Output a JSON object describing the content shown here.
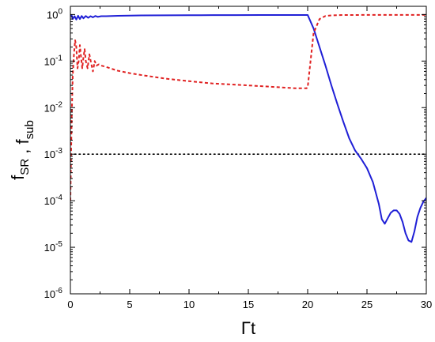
{
  "chart_data": {
    "type": "line",
    "title": "",
    "xlabel": "Γt",
    "ylabel_parts": [
      {
        "base": "f",
        "sub": "SR"
      },
      {
        "sep": " , "
      },
      {
        "base": "f",
        "sub": "sub"
      }
    ],
    "xlim": [
      0,
      30
    ],
    "ylim": [
      1e-06,
      1.5
    ],
    "yscale": "log",
    "grid": false,
    "legend": "none",
    "x_ticks": [
      0,
      5,
      10,
      15,
      20,
      25,
      30
    ],
    "x_tick_labels": [
      "0",
      "5",
      "10",
      "15",
      "20",
      "25",
      "30"
    ],
    "y_ticks": [
      {
        "value": 1,
        "base": "10",
        "exp": "0"
      },
      {
        "value": 0.1,
        "base": "10",
        "exp": "-1"
      },
      {
        "value": 0.01,
        "base": "10",
        "exp": "-2"
      },
      {
        "value": 0.001,
        "base": "10",
        "exp": "-3"
      },
      {
        "value": 0.0001,
        "base": "10",
        "exp": "-4"
      },
      {
        "value": 1e-05,
        "base": "10",
        "exp": "-5"
      },
      {
        "value": 1e-06,
        "base": "10",
        "exp": "-6"
      }
    ],
    "series": [
      {
        "color": "#1f1fd6",
        "style": "solid",
        "x": [
          0,
          0.1,
          0.2,
          0.35,
          0.5,
          0.65,
          0.8,
          0.95,
          1.1,
          1.3,
          1.5,
          1.7,
          1.9,
          2.1,
          2.3,
          2.6,
          3.0,
          4,
          5,
          6,
          8,
          10,
          12,
          14,
          16,
          18,
          19,
          20,
          20.5,
          21,
          21.5,
          22,
          22.5,
          23,
          23.5,
          24,
          24.5,
          25,
          25.5,
          26,
          26.25,
          26.5,
          26.75,
          27,
          27.25,
          27.5,
          27.75,
          28,
          28.25,
          28.5,
          28.75,
          29,
          29.25,
          29.5,
          29.75,
          30
        ],
        "y": [
          0.98,
          0.97,
          0.8,
          0.92,
          0.78,
          0.94,
          0.8,
          0.93,
          0.83,
          0.93,
          0.85,
          0.92,
          0.87,
          0.93,
          0.89,
          0.92,
          0.92,
          0.94,
          0.95,
          0.955,
          0.96,
          0.965,
          0.97,
          0.972,
          0.974,
          0.976,
          0.977,
          0.978,
          0.5,
          0.2,
          0.08,
          0.03,
          0.012,
          0.005,
          0.0022,
          0.0012,
          0.0008,
          0.0005,
          0.00025,
          8.5e-05,
          4e-05,
          3.2e-05,
          4.2e-05,
          5.5e-05,
          6.2e-05,
          6.2e-05,
          5.2e-05,
          3.5e-05,
          2e-05,
          1.4e-05,
          1.3e-05,
          2.2e-05,
          4.5e-05,
          7e-05,
          9.5e-05,
          0.000115
        ]
      },
      {
        "color": "#e02020",
        "style": "dashed",
        "x": [
          0,
          0.05,
          0.12,
          0.2,
          0.3,
          0.4,
          0.5,
          0.6,
          0.7,
          0.8,
          0.9,
          1.0,
          1.1,
          1.2,
          1.3,
          1.45,
          1.6,
          1.75,
          1.9,
          2.05,
          2.2,
          2.4,
          2.6,
          3,
          3.5,
          4,
          5,
          6,
          8,
          10,
          12,
          14,
          16,
          18,
          19,
          19.9,
          20.0,
          20.5,
          21,
          21.5,
          22,
          23,
          25,
          30
        ],
        "y": [
          0.0001,
          0.0008,
          0.008,
          0.05,
          0.14,
          0.28,
          0.2,
          0.07,
          0.1,
          0.22,
          0.12,
          0.07,
          0.12,
          0.18,
          0.1,
          0.07,
          0.14,
          0.09,
          0.06,
          0.1,
          0.08,
          0.085,
          0.08,
          0.075,
          0.068,
          0.062,
          0.055,
          0.05,
          0.042,
          0.037,
          0.033,
          0.031,
          0.029,
          0.027,
          0.026,
          0.026,
          0.027,
          0.4,
          0.8,
          0.93,
          0.96,
          0.975,
          0.98,
          0.98
        ]
      }
    ],
    "annotations": [
      {
        "type": "hline",
        "y": 0.001,
        "color": "#000000",
        "style": "dotted"
      }
    ]
  }
}
